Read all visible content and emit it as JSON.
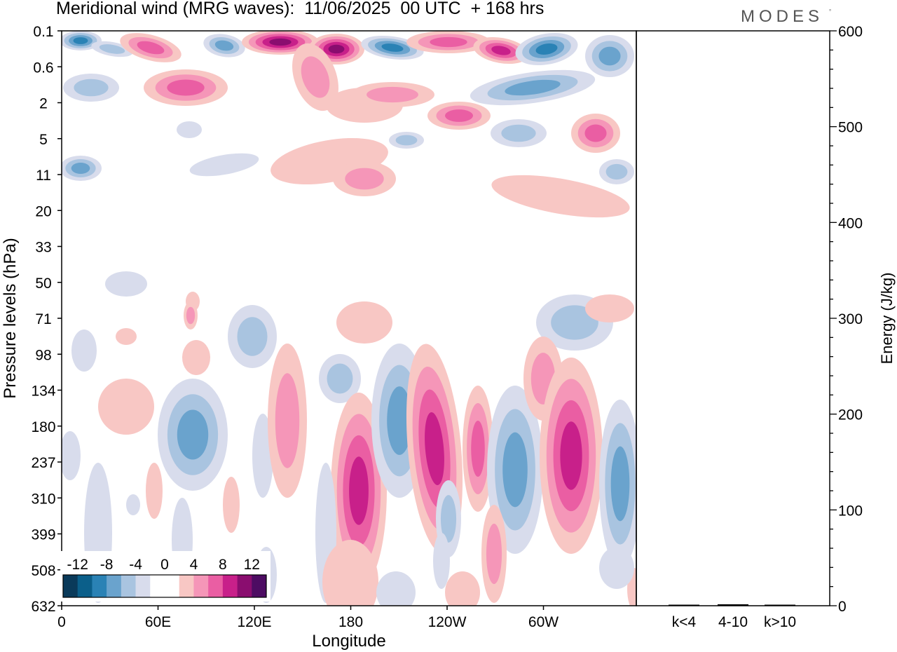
{
  "title": "Meridional wind (MRG waves):  11/06/2025  00 UTC  + 168 hrs",
  "logo": "MODES",
  "logo_mark": "°",
  "colors": {
    "scale": [
      "#0a3a5a",
      "#0b5f8a",
      "#2a82b5",
      "#6aa3cd",
      "#a9c4e0",
      "#d8dcec",
      "#ffffff",
      "#ffffff",
      "#f8c7c4",
      "#f596b8",
      "#ea5ea3",
      "#c8208a",
      "#8a0d6f",
      "#4d0c62"
    ]
  },
  "chart_data": [
    {
      "type": "heatmap",
      "title": "",
      "xlabel": "Longitude",
      "ylabel": "Pressure levels (hPa)",
      "x_ticks": [
        "0",
        "60E",
        "120E",
        "180",
        "120W",
        "60W"
      ],
      "y_ticks": [
        "0.1",
        "0.6",
        "2",
        "5",
        "11",
        "20",
        "33",
        "50",
        "71",
        "98",
        "134",
        "180",
        "237",
        "310",
        "399",
        "508",
        "632"
      ],
      "colorbar": {
        "labels": [
          "-12",
          "-8",
          "-4",
          "0",
          "4",
          "8",
          "12"
        ],
        "levels": [
          -14,
          -12,
          -10,
          -8,
          -6,
          -4,
          -2,
          0,
          2,
          4,
          6,
          8,
          10,
          12,
          14
        ]
      },
      "description_bands": "Strong alternating positive/negative meridional wind cells in the upper stratosphere (0.1-5 hPa) and tilted MRG-wave packets in the upper troposphere (98-508 hPa)."
    },
    {
      "type": "bar",
      "categories": [
        "k<4",
        "4-10",
        "k>10"
      ],
      "values": [
        0.3,
        1.5,
        0.4
      ],
      "ylabel": "Energy (J/kg)",
      "ylim": [
        0,
        600
      ],
      "y_ticks": [
        "0",
        "100",
        "200",
        "300",
        "400",
        "500",
        "600"
      ]
    }
  ]
}
